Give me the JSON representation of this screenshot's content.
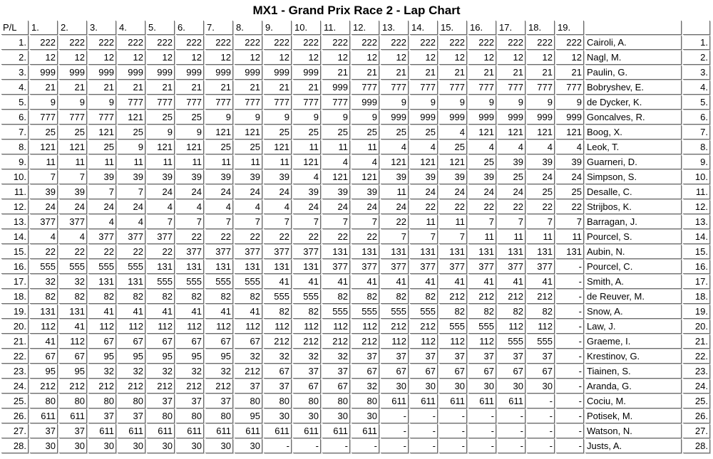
{
  "title": "MX1 - Grand Prix Race 2 - Lap Chart",
  "table": {
    "corner_header": "P/L",
    "lap_headers": [
      "1.",
      "2.",
      "3.",
      "4.",
      "5.",
      "6.",
      "7.",
      "8.",
      "9.",
      "10.",
      "11.",
      "12.",
      "13.",
      "14.",
      "15.",
      "16.",
      "17.",
      "18.",
      "19."
    ],
    "rows": [
      {
        "pos": "1.",
        "laps": [
          "222",
          "222",
          "222",
          "222",
          "222",
          "222",
          "222",
          "222",
          "222",
          "222",
          "222",
          "222",
          "222",
          "222",
          "222",
          "222",
          "222",
          "222",
          "222"
        ],
        "name": "Cairoli, A.",
        "final": "1."
      },
      {
        "pos": "2.",
        "laps": [
          "12",
          "12",
          "12",
          "12",
          "12",
          "12",
          "12",
          "12",
          "12",
          "12",
          "12",
          "12",
          "12",
          "12",
          "12",
          "12",
          "12",
          "12",
          "12"
        ],
        "name": "Nagl, M.",
        "final": "2."
      },
      {
        "pos": "3.",
        "laps": [
          "999",
          "999",
          "999",
          "999",
          "999",
          "999",
          "999",
          "999",
          "999",
          "999",
          "21",
          "21",
          "21",
          "21",
          "21",
          "21",
          "21",
          "21",
          "21"
        ],
        "name": "Paulin, G.",
        "final": "3."
      },
      {
        "pos": "4.",
        "laps": [
          "21",
          "21",
          "21",
          "21",
          "21",
          "21",
          "21",
          "21",
          "21",
          "21",
          "999",
          "777",
          "777",
          "777",
          "777",
          "777",
          "777",
          "777",
          "777"
        ],
        "name": "Bobryshev, E.",
        "final": "4."
      },
      {
        "pos": "5.",
        "laps": [
          "9",
          "9",
          "9",
          "777",
          "777",
          "777",
          "777",
          "777",
          "777",
          "777",
          "777",
          "999",
          "9",
          "9",
          "9",
          "9",
          "9",
          "9",
          "9"
        ],
        "name": "de Dycker, K.",
        "final": "5."
      },
      {
        "pos": "6.",
        "laps": [
          "777",
          "777",
          "777",
          "121",
          "25",
          "25",
          "9",
          "9",
          "9",
          "9",
          "9",
          "9",
          "999",
          "999",
          "999",
          "999",
          "999",
          "999",
          "999"
        ],
        "name": "Goncalves, R.",
        "final": "6."
      },
      {
        "pos": "7.",
        "laps": [
          "25",
          "25",
          "121",
          "25",
          "9",
          "9",
          "121",
          "121",
          "25",
          "25",
          "25",
          "25",
          "25",
          "25",
          "4",
          "121",
          "121",
          "121",
          "121"
        ],
        "name": "Boog, X.",
        "final": "7."
      },
      {
        "pos": "8.",
        "laps": [
          "121",
          "121",
          "25",
          "9",
          "121",
          "121",
          "25",
          "25",
          "121",
          "11",
          "11",
          "11",
          "4",
          "4",
          "25",
          "4",
          "4",
          "4",
          "4"
        ],
        "name": "Leok, T.",
        "final": "8."
      },
      {
        "pos": "9.",
        "laps": [
          "11",
          "11",
          "11",
          "11",
          "11",
          "11",
          "11",
          "11",
          "11",
          "121",
          "4",
          "4",
          "121",
          "121",
          "121",
          "25",
          "39",
          "39",
          "39"
        ],
        "name": "Guarneri, D.",
        "final": "9."
      },
      {
        "pos": "10.",
        "laps": [
          "7",
          "7",
          "39",
          "39",
          "39",
          "39",
          "39",
          "39",
          "39",
          "4",
          "121",
          "121",
          "39",
          "39",
          "39",
          "39",
          "25",
          "24",
          "24"
        ],
        "name": "Simpson, S.",
        "final": "10."
      },
      {
        "pos": "11.",
        "laps": [
          "39",
          "39",
          "7",
          "7",
          "24",
          "24",
          "24",
          "24",
          "24",
          "39",
          "39",
          "39",
          "11",
          "24",
          "24",
          "24",
          "24",
          "25",
          "25"
        ],
        "name": "Desalle, C.",
        "final": "11."
      },
      {
        "pos": "12.",
        "laps": [
          "24",
          "24",
          "24",
          "24",
          "4",
          "4",
          "4",
          "4",
          "4",
          "24",
          "24",
          "24",
          "24",
          "22",
          "22",
          "22",
          "22",
          "22",
          "22"
        ],
        "name": "Strijbos, K.",
        "final": "12."
      },
      {
        "pos": "13.",
        "laps": [
          "377",
          "377",
          "4",
          "4",
          "7",
          "7",
          "7",
          "7",
          "7",
          "7",
          "7",
          "7",
          "22",
          "11",
          "11",
          "7",
          "7",
          "7",
          "7"
        ],
        "name": "Barragan, J.",
        "final": "13."
      },
      {
        "pos": "14.",
        "laps": [
          "4",
          "4",
          "377",
          "377",
          "377",
          "22",
          "22",
          "22",
          "22",
          "22",
          "22",
          "22",
          "7",
          "7",
          "7",
          "11",
          "11",
          "11",
          "11"
        ],
        "name": "Pourcel, S.",
        "final": "14."
      },
      {
        "pos": "15.",
        "laps": [
          "22",
          "22",
          "22",
          "22",
          "22",
          "377",
          "377",
          "377",
          "377",
          "377",
          "131",
          "131",
          "131",
          "131",
          "131",
          "131",
          "131",
          "131",
          "131"
        ],
        "name": "Aubin, N.",
        "final": "15."
      },
      {
        "pos": "16.",
        "laps": [
          "555",
          "555",
          "555",
          "555",
          "131",
          "131",
          "131",
          "131",
          "131",
          "131",
          "377",
          "377",
          "377",
          "377",
          "377",
          "377",
          "377",
          "377",
          "-"
        ],
        "name": "Pourcel, C.",
        "final": "16."
      },
      {
        "pos": "17.",
        "laps": [
          "32",
          "32",
          "131",
          "131",
          "555",
          "555",
          "555",
          "555",
          "41",
          "41",
          "41",
          "41",
          "41",
          "41",
          "41",
          "41",
          "41",
          "41",
          "-"
        ],
        "name": "Smith, A.",
        "final": "17."
      },
      {
        "pos": "18.",
        "laps": [
          "82",
          "82",
          "82",
          "82",
          "82",
          "82",
          "82",
          "82",
          "555",
          "555",
          "82",
          "82",
          "82",
          "82",
          "212",
          "212",
          "212",
          "212",
          "-"
        ],
        "name": "de Reuver, M.",
        "final": "18."
      },
      {
        "pos": "19.",
        "laps": [
          "131",
          "131",
          "41",
          "41",
          "41",
          "41",
          "41",
          "41",
          "82",
          "82",
          "555",
          "555",
          "555",
          "555",
          "82",
          "82",
          "82",
          "82",
          "-"
        ],
        "name": "Snow, A.",
        "final": "19."
      },
      {
        "pos": "20.",
        "laps": [
          "112",
          "41",
          "112",
          "112",
          "112",
          "112",
          "112",
          "112",
          "112",
          "112",
          "112",
          "112",
          "212",
          "212",
          "555",
          "555",
          "112",
          "112",
          "-"
        ],
        "name": "Law, J.",
        "final": "20."
      },
      {
        "pos": "21.",
        "laps": [
          "41",
          "112",
          "67",
          "67",
          "67",
          "67",
          "67",
          "67",
          "212",
          "212",
          "212",
          "212",
          "112",
          "112",
          "112",
          "112",
          "555",
          "555",
          "-"
        ],
        "name": "Graeme, I.",
        "final": "21."
      },
      {
        "pos": "22.",
        "laps": [
          "67",
          "67",
          "95",
          "95",
          "95",
          "95",
          "95",
          "32",
          "32",
          "32",
          "32",
          "37",
          "37",
          "37",
          "37",
          "37",
          "37",
          "37",
          "-"
        ],
        "name": "Krestinov, G.",
        "final": "22."
      },
      {
        "pos": "23.",
        "laps": [
          "95",
          "95",
          "32",
          "32",
          "32",
          "32",
          "32",
          "212",
          "67",
          "37",
          "37",
          "67",
          "67",
          "67",
          "67",
          "67",
          "67",
          "67",
          "-"
        ],
        "name": "Tiainen, S.",
        "final": "23."
      },
      {
        "pos": "24.",
        "laps": [
          "212",
          "212",
          "212",
          "212",
          "212",
          "212",
          "212",
          "37",
          "37",
          "67",
          "67",
          "32",
          "30",
          "30",
          "30",
          "30",
          "30",
          "30",
          "-"
        ],
        "name": "Aranda, G.",
        "final": "24."
      },
      {
        "pos": "25.",
        "laps": [
          "80",
          "80",
          "80",
          "80",
          "37",
          "37",
          "37",
          "80",
          "80",
          "80",
          "80",
          "80",
          "611",
          "611",
          "611",
          "611",
          "611",
          "-",
          "-"
        ],
        "name": "Cociu, M.",
        "final": "25."
      },
      {
        "pos": "26.",
        "laps": [
          "611",
          "611",
          "37",
          "37",
          "80",
          "80",
          "80",
          "95",
          "30",
          "30",
          "30",
          "30",
          "-",
          "-",
          "-",
          "-",
          "-",
          "-",
          "-"
        ],
        "name": "Potisek, M.",
        "final": "26."
      },
      {
        "pos": "27.",
        "laps": [
          "37",
          "37",
          "611",
          "611",
          "611",
          "611",
          "611",
          "611",
          "611",
          "611",
          "611",
          "611",
          "-",
          "-",
          "-",
          "-",
          "-",
          "-",
          "-"
        ],
        "name": "Watson, N.",
        "final": "27."
      },
      {
        "pos": "28.",
        "laps": [
          "30",
          "30",
          "30",
          "30",
          "30",
          "30",
          "30",
          "30",
          "-",
          "-",
          "-",
          "-",
          "-",
          "-",
          "-",
          "-",
          "-",
          "-",
          "-"
        ],
        "name": "Justs, A.",
        "final": "28."
      }
    ]
  }
}
